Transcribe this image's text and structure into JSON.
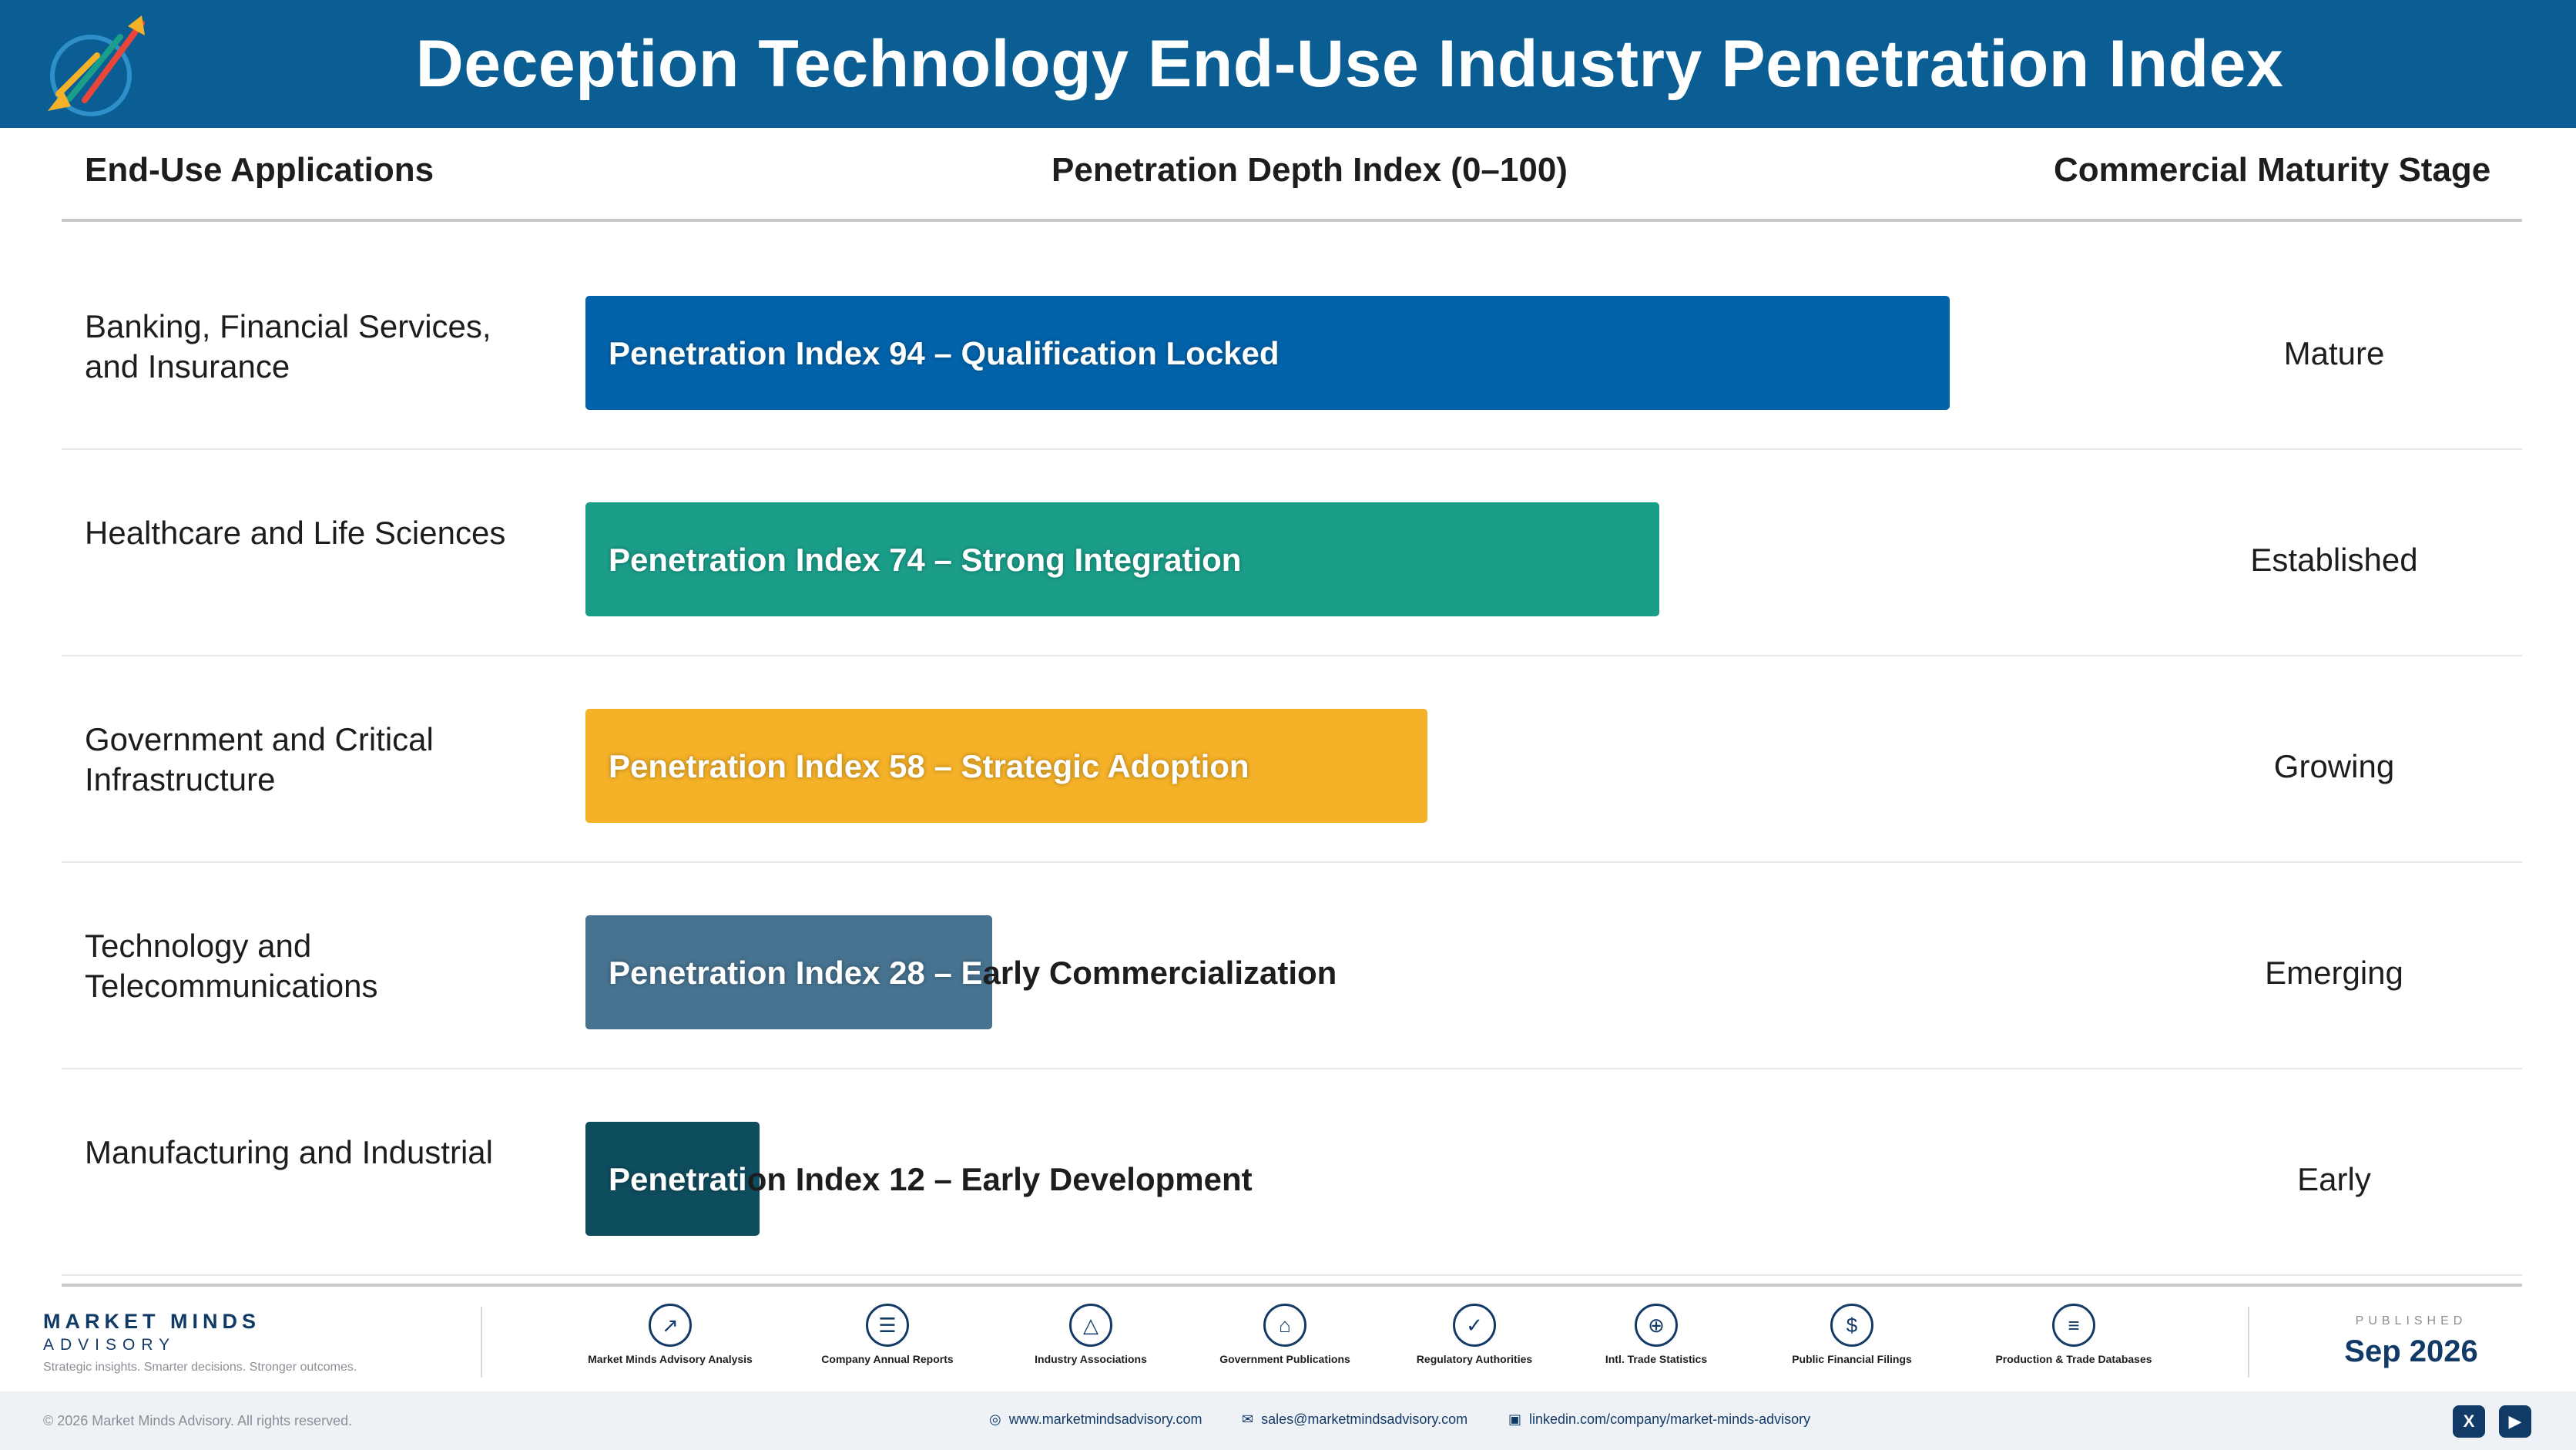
{
  "header": {
    "title": "Deception Technology End-Use Industry Penetration Index"
  },
  "columns": {
    "app": "End-Use Applications",
    "index": "Penetration Depth Index (0–100)",
    "stage": "Commercial Maturity Stage"
  },
  "chart_data": {
    "type": "bar",
    "orientation": "horizontal",
    "title": "Deception Technology End-Use Industry Penetration Index",
    "xlim": [
      0,
      100
    ],
    "grid": false,
    "categories": [
      "Banking, Financial Services, and Insurance",
      "Healthcare and Life Sciences",
      "Government and Critical Infrastructure",
      "Technology and Telecommunications",
      "Manufacturing and Industrial"
    ],
    "values": [
      94,
      74,
      58,
      28,
      12
    ],
    "bar_labels": [
      "Penetration Index 94 – Qualification Locked",
      "Penetration Index 74 – Strong Integration",
      "Penetration Index 58 – Strategic Adoption",
      "Penetration Index 28 – Early Commercialization",
      "Penetration Index 12 – Early Development"
    ],
    "stages": [
      "Mature",
      "Established",
      "Growing",
      "Emerging",
      "Early"
    ],
    "colors": [
      "#0263ab",
      "#1a9e8a",
      "#f5b127",
      "#477390",
      "#0e4d5e"
    ]
  },
  "footer": {
    "brand_line1": "MARKET MINDS",
    "brand_line2": "ADVISORY",
    "tagline": "Strategic insights. Smarter decisions. Stronger outcomes.",
    "sources": [
      {
        "label": "Market Minds Advisory Analysis",
        "icon": "trend-chart-icon"
      },
      {
        "label": "Company Annual Reports",
        "icon": "document-icon"
      },
      {
        "label": "Industry Associations",
        "icon": "network-icon"
      },
      {
        "label": "Government Publications",
        "icon": "government-building-icon"
      },
      {
        "label": "Regulatory Authorities",
        "icon": "shield-check-icon"
      },
      {
        "label": "Intl. Trade Statistics",
        "icon": "globe-icon"
      },
      {
        "label": "Public Financial Filings",
        "icon": "coin-icon"
      },
      {
        "label": "Production & Trade Databases",
        "icon": "database-icon"
      }
    ],
    "published_label": "PUBLISHED",
    "published_date": "Sep 2026",
    "copyright": "© 2026 Market Minds Advisory. All rights reserved.",
    "website": "www.marketmindsadvisory.com",
    "email": "sales@marketmindsadvisory.com",
    "linkedin": "linkedin.com/company/market-minds-advisory"
  }
}
